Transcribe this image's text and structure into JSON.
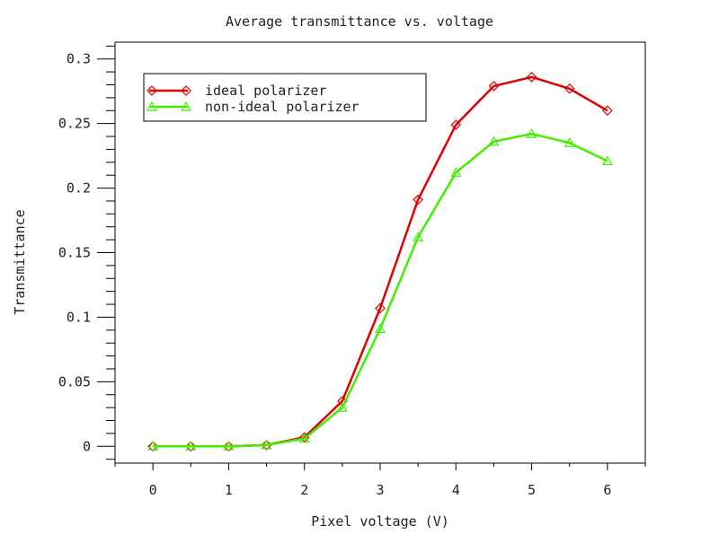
{
  "chart_data": {
    "type": "line",
    "title": "Average transmittance vs. voltage",
    "xlabel": "Pixel voltage (V)",
    "ylabel": "Transmittance",
    "xlim": [
      -0.5,
      6.5
    ],
    "ylim": [
      -0.013,
      0.313
    ],
    "x_ticks": [
      0,
      1,
      2,
      3,
      4,
      5,
      6
    ],
    "x_tick_labels": [
      "0",
      "1",
      "2",
      "3",
      "4",
      "5",
      "6"
    ],
    "y_ticks": [
      0,
      0.05,
      0.1,
      0.15,
      0.2,
      0.25,
      0.3
    ],
    "y_tick_labels": [
      "0",
      "0.05",
      "0.1",
      "0.15",
      "0.2",
      "0.25",
      "0.3"
    ],
    "grid": false,
    "legend_position": "top-left",
    "x": [
      0,
      0.5,
      1,
      1.5,
      2,
      2.5,
      3,
      3.5,
      4,
      4.5,
      5,
      5.5,
      6
    ],
    "series": [
      {
        "name": "ideal polarizer",
        "color": "#dd0000",
        "marker": "diamond",
        "values": [
          0,
          0,
          0,
          0.001,
          0.007,
          0.035,
          0.107,
          0.191,
          0.249,
          0.279,
          0.286,
          0.277,
          0.26
        ]
      },
      {
        "name": "non-ideal polarizer",
        "color": "#44ee00",
        "marker": "triangle",
        "values": [
          0,
          0,
          0,
          0.001,
          0.006,
          0.03,
          0.091,
          0.162,
          0.212,
          0.236,
          0.242,
          0.235,
          0.221
        ]
      }
    ]
  }
}
